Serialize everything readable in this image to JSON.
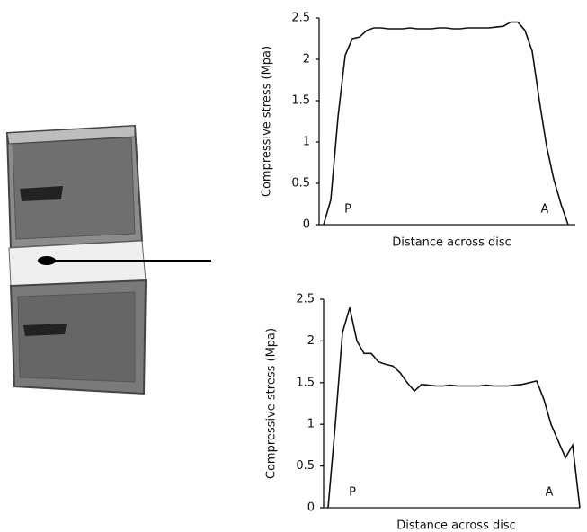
{
  "chart_data": [
    {
      "type": "line",
      "ylabel": "Compressive stress (Mpa)",
      "xlabel": "Distance across disc",
      "annotations": [
        "P",
        "A"
      ],
      "color": "#111111",
      "ylim": [
        0,
        2.5
      ],
      "yticks": [
        0,
        0.5,
        1,
        1.5,
        2,
        2.5
      ],
      "values": [
        0,
        0.3,
        1.3,
        2.05,
        2.25,
        2.27,
        2.35,
        2.38,
        2.38,
        2.37,
        2.37,
        2.37,
        2.38,
        2.37,
        2.37,
        2.37,
        2.38,
        2.38,
        2.37,
        2.37,
        2.38,
        2.38,
        2.38,
        2.38,
        2.39,
        2.4,
        2.45,
        2.45,
        2.35,
        2.1,
        1.5,
        0.95,
        0.55,
        0.25,
        0
      ]
    },
    {
      "type": "line",
      "ylabel": "Compressive stress (Mpa)",
      "xlabel": "Distance across disc",
      "annotations": [
        "P",
        "A"
      ],
      "color": "#111111",
      "ylim": [
        0,
        2.5
      ],
      "yticks": [
        0,
        0.5,
        1,
        1.5,
        2,
        2.5
      ],
      "values": [
        0,
        1.0,
        2.1,
        2.4,
        2.0,
        1.85,
        1.85,
        1.75,
        1.72,
        1.7,
        1.62,
        1.5,
        1.4,
        1.48,
        1.47,
        1.46,
        1.46,
        1.47,
        1.46,
        1.46,
        1.46,
        1.46,
        1.47,
        1.46,
        1.46,
        1.46,
        1.47,
        1.48,
        1.5,
        1.52,
        1.3,
        1.0,
        0.8,
        0.6,
        0.75,
        0
      ]
    }
  ]
}
